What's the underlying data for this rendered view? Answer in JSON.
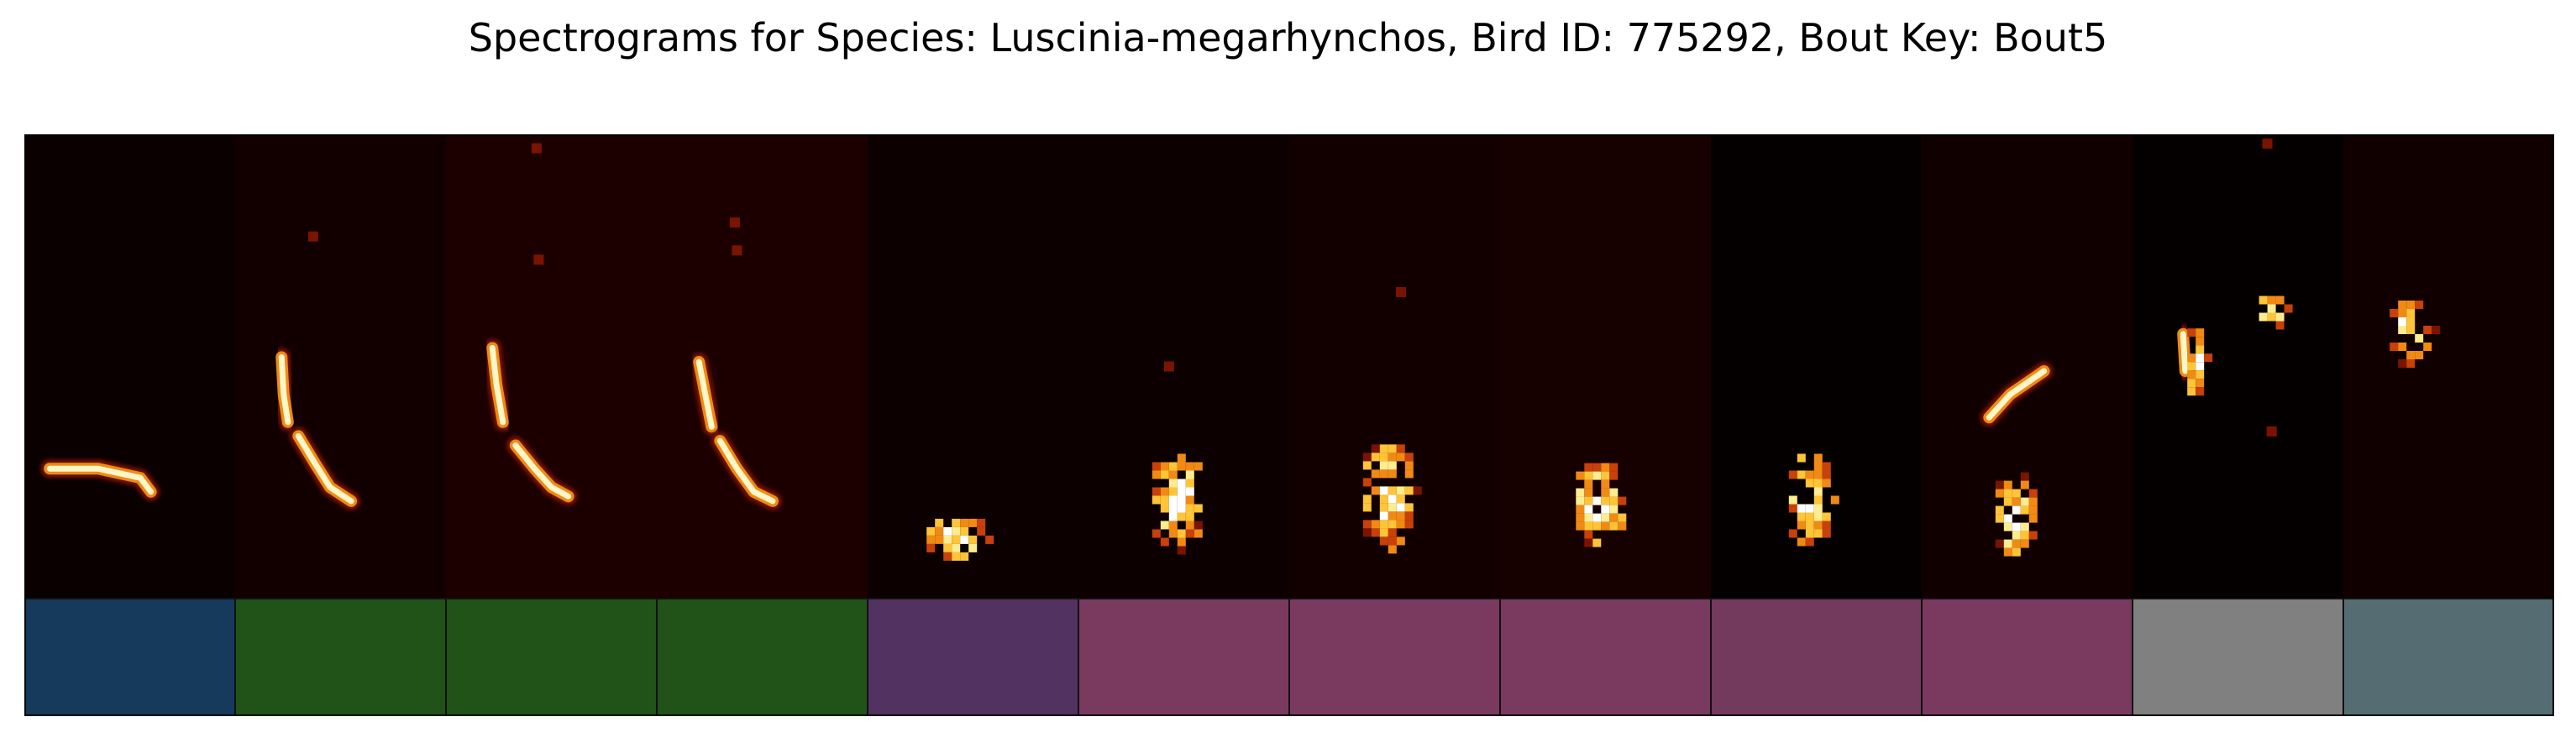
{
  "chart_data": {
    "type": "spectrogram",
    "title": "Spectrograms for Species: Luscinia-megarhynchos, Bird ID: 775292, Bout Key: Bout5",
    "species": "Luscinia-megarhynchos",
    "bird_id": "775292",
    "bout_key": "Bout5",
    "colormap": "afmhot",
    "axes_visible": false,
    "syllables": [
      {
        "index": 1,
        "label_color": "#163a5c",
        "background": "#0a0000",
        "shape": "flat",
        "strokes": [
          [
            [
              0.12,
              0.72
            ],
            [
              0.35,
              0.72
            ],
            [
              0.55,
              0.74
            ],
            [
              0.6,
              0.77
            ]
          ]
        ]
      },
      {
        "index": 2,
        "label_color": "#215218",
        "background": "#120000",
        "shape": "downsweep",
        "strokes": [
          [
            [
              0.22,
              0.48
            ],
            [
              0.23,
              0.56
            ],
            [
              0.25,
              0.62
            ]
          ],
          [
            [
              0.3,
              0.65
            ],
            [
              0.38,
              0.71
            ],
            [
              0.45,
              0.76
            ],
            [
              0.55,
              0.79
            ]
          ]
        ],
        "dots": [
          [
            0.37,
            0.22
          ]
        ]
      },
      {
        "index": 3,
        "label_color": "#215218",
        "background": "#1c0000",
        "shape": "downsweep",
        "strokes": [
          [
            [
              0.22,
              0.46
            ],
            [
              0.24,
              0.54
            ],
            [
              0.27,
              0.62
            ]
          ],
          [
            [
              0.33,
              0.67
            ],
            [
              0.42,
              0.72
            ],
            [
              0.5,
              0.76
            ],
            [
              0.58,
              0.78
            ]
          ]
        ],
        "dots": [
          [
            0.44,
            0.27
          ],
          [
            0.43,
            0.03
          ]
        ]
      },
      {
        "index": 4,
        "label_color": "#215218",
        "background": "#1c0000",
        "shape": "downsweep",
        "strokes": [
          [
            [
              0.2,
              0.49
            ],
            [
              0.23,
              0.56
            ],
            [
              0.26,
              0.63
            ]
          ],
          [
            [
              0.3,
              0.66
            ],
            [
              0.38,
              0.72
            ],
            [
              0.46,
              0.77
            ],
            [
              0.55,
              0.79
            ]
          ]
        ],
        "dots": [
          [
            0.38,
            0.25
          ],
          [
            0.37,
            0.19
          ]
        ]
      },
      {
        "index": 5,
        "label_color": "#523260",
        "background": "#0d0000",
        "shape": "blob",
        "blobs": [
          [
            0.4,
            0.86,
            0.16,
            0.05
          ]
        ]
      },
      {
        "index": 6,
        "label_color": "#7a3a60",
        "background": "#0d0000",
        "shape": "cluster",
        "blobs": [
          [
            0.45,
            0.78,
            0.14,
            0.11
          ]
        ],
        "dots": [
          [
            0.43,
            0.5
          ]
        ]
      },
      {
        "index": 7,
        "label_color": "#7a3a60",
        "background": "#120000",
        "shape": "cluster",
        "blobs": [
          [
            0.45,
            0.77,
            0.14,
            0.12
          ]
        ],
        "dots": [
          [
            0.53,
            0.34
          ]
        ]
      },
      {
        "index": 8,
        "label_color": "#7a3a60",
        "background": "#160000",
        "shape": "cluster",
        "blobs": [
          [
            0.45,
            0.79,
            0.13,
            0.1
          ]
        ]
      },
      {
        "index": 9,
        "label_color": "#733a5d",
        "background": "#050000",
        "shape": "cluster",
        "blobs": [
          [
            0.45,
            0.78,
            0.12,
            0.11
          ]
        ]
      },
      {
        "index": 10,
        "label_color": "#7a3a60",
        "background": "#110000",
        "shape": "cluster",
        "strokes": [
          [
            [
              0.32,
              0.61
            ],
            [
              0.42,
              0.56
            ],
            [
              0.58,
              0.51
            ]
          ]
        ],
        "blobs": [
          [
            0.42,
            0.81,
            0.11,
            0.1
          ]
        ]
      },
      {
        "index": 11,
        "label_color": "#808080",
        "background": "#050000",
        "shape": "chirp",
        "strokes": [
          [
            [
              0.24,
              0.43
            ],
            [
              0.25,
              0.51
            ]
          ]
        ],
        "blobs": [
          [
            0.28,
            0.48,
            0.06,
            0.08
          ],
          [
            0.65,
            0.37,
            0.09,
            0.04
          ]
        ],
        "dots": [
          [
            0.64,
            0.02
          ],
          [
            0.66,
            0.64
          ]
        ]
      },
      {
        "index": 12,
        "label_color": "#556d72",
        "background": "#110000",
        "shape": "chirp",
        "blobs": [
          [
            0.3,
            0.42,
            0.12,
            0.08
          ]
        ]
      }
    ]
  }
}
